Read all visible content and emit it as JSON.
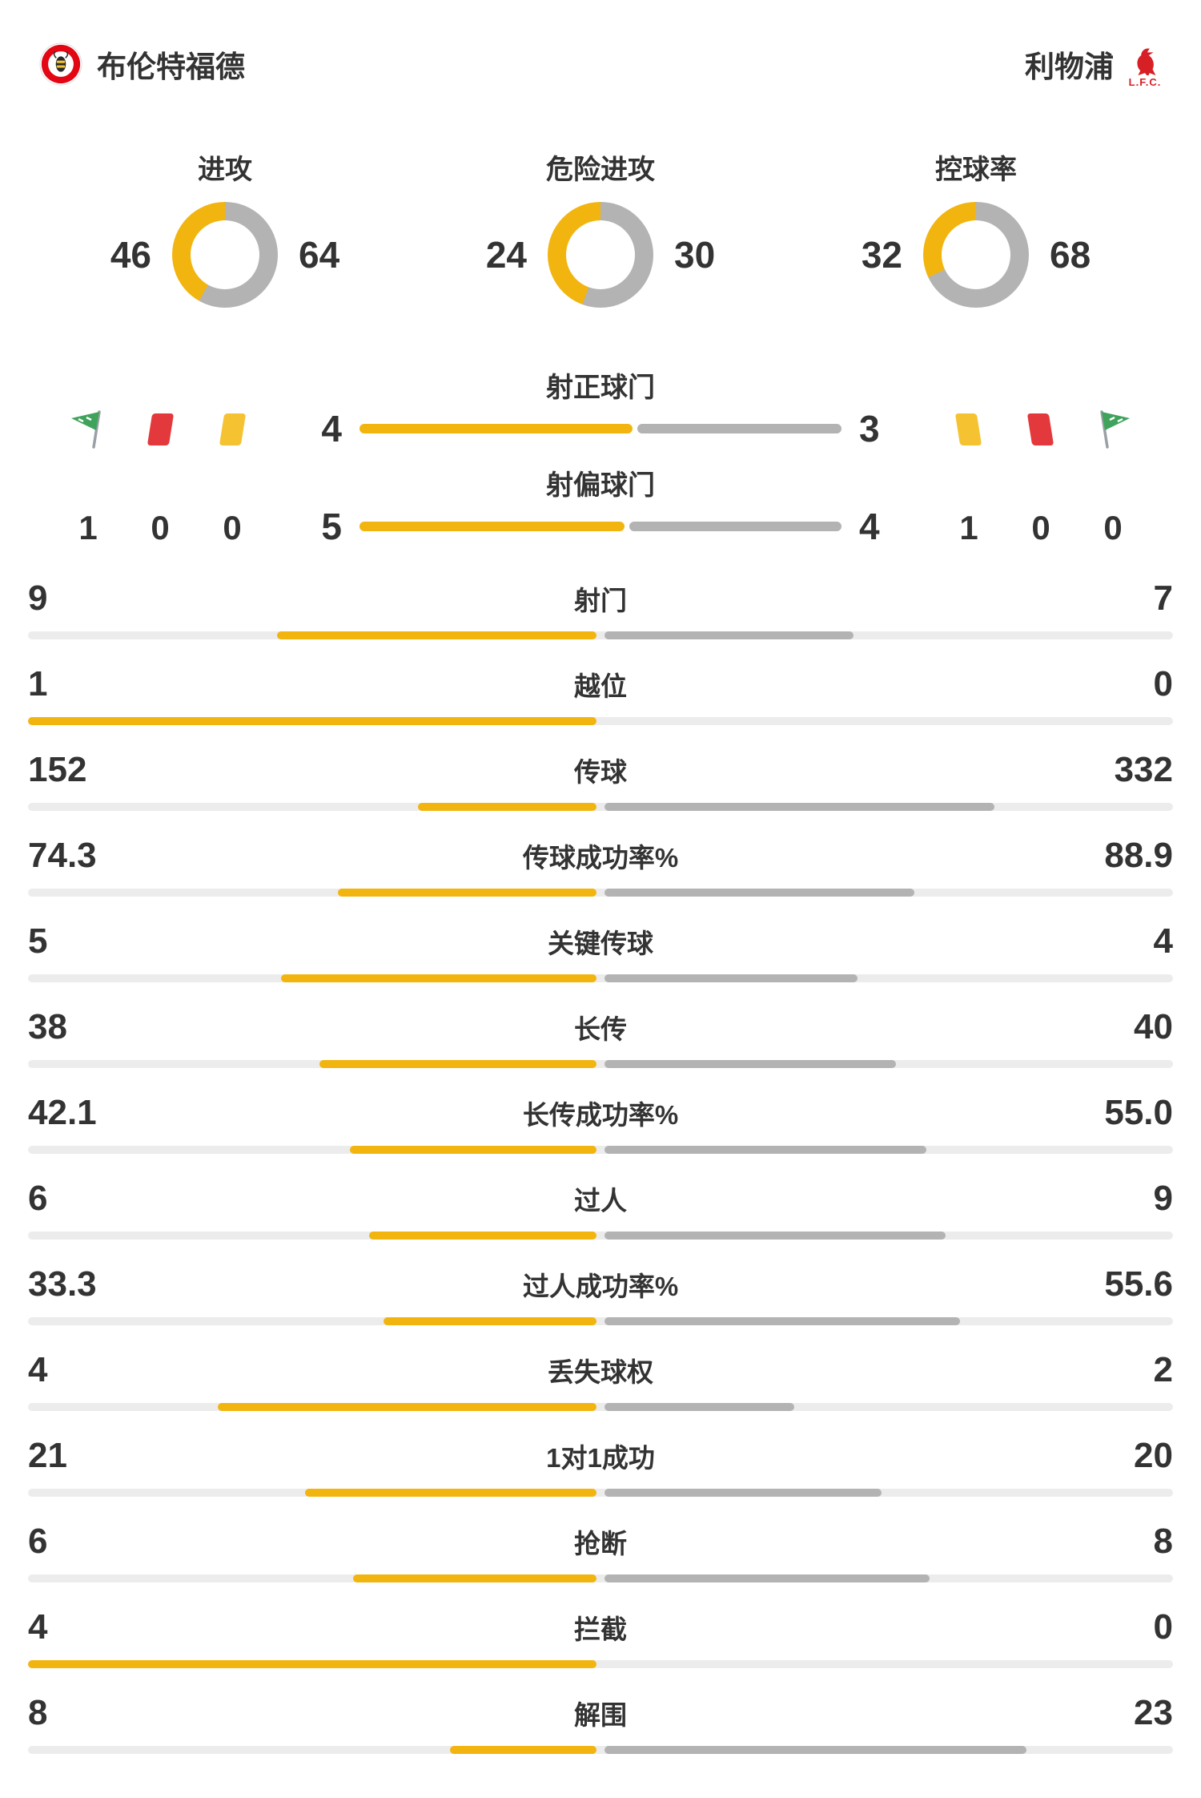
{
  "colors": {
    "home": "#F2B50F",
    "away": "#B3B3B3",
    "track": "#ECECEC",
    "text": "#333333",
    "red_card": "#E4393C",
    "yellow_card": "#F5C332",
    "corner_flag": "#3FA35C",
    "crest_red": "#D71F26"
  },
  "header": {
    "home": {
      "name": "布伦特福德"
    },
    "away": {
      "name": "利物浦",
      "crest_text": "L.F.C."
    }
  },
  "donuts": [
    {
      "label": "进攻",
      "home": "46",
      "away": "64"
    },
    {
      "label": "危险进攻",
      "home": "24",
      "away": "30"
    },
    {
      "label": "控球率",
      "home": "32",
      "away": "68"
    }
  ],
  "shot_bars": [
    {
      "label": "射正球门",
      "home": "4",
      "away": "3"
    },
    {
      "label": "射偏球门",
      "home": "5",
      "away": "4"
    }
  ],
  "discipline": {
    "home": [
      {
        "icon": "corner-flag",
        "value": "1"
      },
      {
        "icon": "red-card",
        "value": "0"
      },
      {
        "icon": "yellow-card",
        "value": "0"
      }
    ],
    "away": [
      {
        "icon": "yellow-card",
        "value": "1"
      },
      {
        "icon": "red-card",
        "value": "0"
      },
      {
        "icon": "corner-flag",
        "value": "0"
      }
    ]
  },
  "stats": [
    {
      "label": "射门",
      "home": "9",
      "away": "7"
    },
    {
      "label": "越位",
      "home": "1",
      "away": "0"
    },
    {
      "label": "传球",
      "home": "152",
      "away": "332"
    },
    {
      "label": "传球成功率%",
      "home": "74.3",
      "away": "88.9"
    },
    {
      "label": "关键传球",
      "home": "5",
      "away": "4"
    },
    {
      "label": "长传",
      "home": "38",
      "away": "40"
    },
    {
      "label": "长传成功率%",
      "home": "42.1",
      "away": "55.0"
    },
    {
      "label": "过人",
      "home": "6",
      "away": "9"
    },
    {
      "label": "过人成功率%",
      "home": "33.3",
      "away": "55.6"
    },
    {
      "label": "丢失球权",
      "home": "4",
      "away": "2"
    },
    {
      "label": "1对1成功",
      "home": "21",
      "away": "20"
    },
    {
      "label": "抢断",
      "home": "6",
      "away": "8"
    },
    {
      "label": "拦截",
      "home": "4",
      "away": "0"
    },
    {
      "label": "解围",
      "home": "8",
      "away": "23"
    }
  ],
  "chart_data": {
    "type": "bar",
    "title": "布伦特福德 vs 利物浦 比赛数据统计",
    "categories": [
      "进攻",
      "危险进攻",
      "控球率",
      "角球",
      "红牌",
      "黄牌",
      "射正球门",
      "射偏球门",
      "射门",
      "越位",
      "传球",
      "传球成功率%",
      "关键传球",
      "长传",
      "长传成功率%",
      "过人",
      "过人成功率%",
      "丢失球权",
      "1对1成功",
      "抢断",
      "拦截",
      "解围"
    ],
    "series": [
      {
        "name": "布伦特福德",
        "values": [
          46,
          24,
          32,
          1,
          0,
          0,
          4,
          5,
          9,
          1,
          152,
          74.3,
          5,
          38,
          42.1,
          6,
          33.3,
          4,
          21,
          6,
          4,
          8
        ]
      },
      {
        "name": "利物浦",
        "values": [
          64,
          30,
          68,
          0,
          0,
          1,
          3,
          4,
          7,
          0,
          332,
          88.9,
          4,
          40,
          55.0,
          9,
          55.6,
          2,
          20,
          8,
          0,
          23
        ]
      }
    ],
    "legend_position": "header",
    "grid": false
  }
}
